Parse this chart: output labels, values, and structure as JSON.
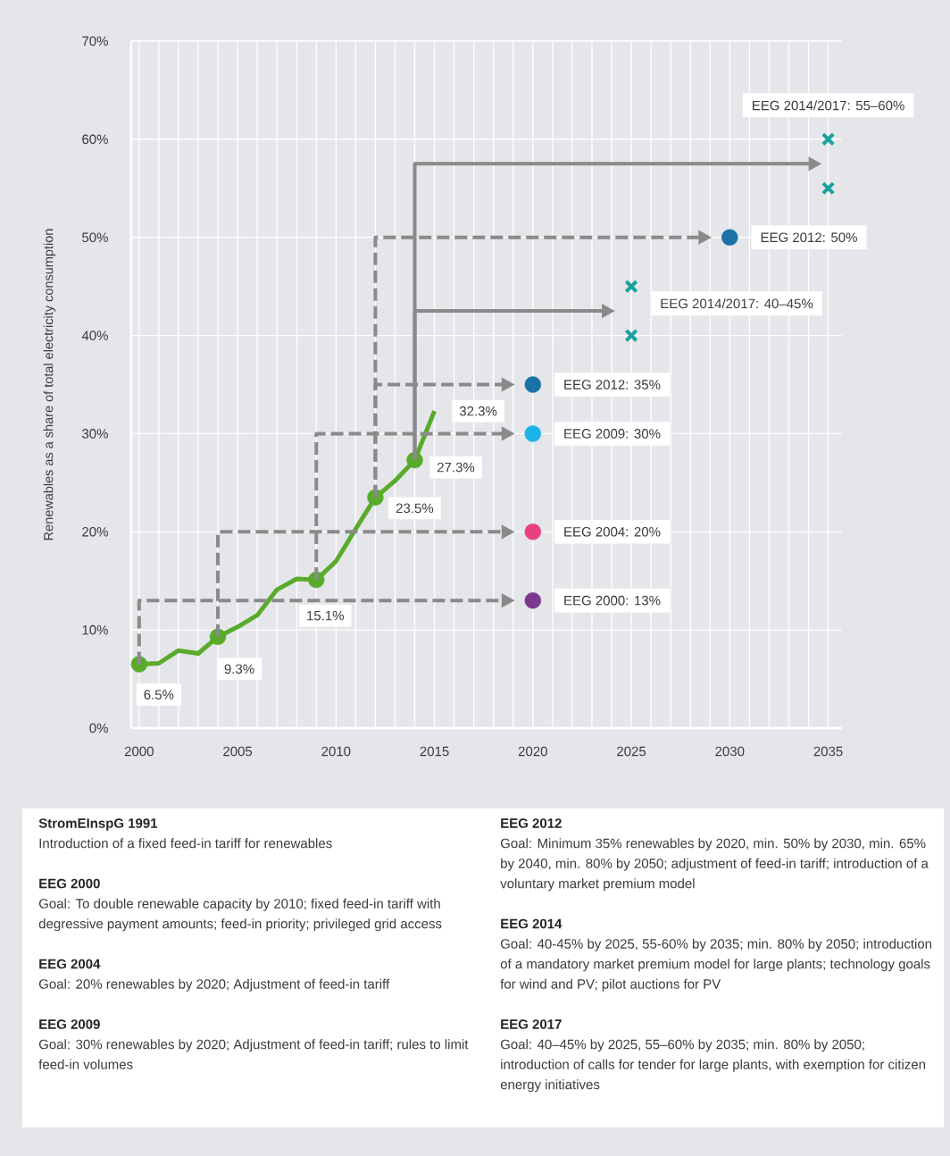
{
  "chart_data": {
    "type": "line",
    "ylabel": "Renewables as a share of total electricity consumption",
    "xlim": [
      1999.6,
      2035.7
    ],
    "ylim": [
      0,
      70
    ],
    "xticks": [
      2000,
      2005,
      2010,
      2015,
      2020,
      2025,
      2030,
      2035
    ],
    "yticks": [
      {
        "value": 0,
        "label": "0%"
      },
      {
        "value": 10,
        "label": "10%"
      },
      {
        "value": 20,
        "label": "20%"
      },
      {
        "value": 30,
        "label": "30%"
      },
      {
        "value": 40,
        "label": "40%"
      },
      {
        "value": 50,
        "label": "50%"
      },
      {
        "value": 60,
        "label": "60%"
      },
      {
        "value": 70,
        "label": "70%"
      }
    ],
    "grid": true,
    "x": [
      2000,
      2001,
      2002,
      2003,
      2004,
      2005,
      2006,
      2007,
      2008,
      2009,
      2010,
      2011,
      2012,
      2013,
      2014,
      2015
    ],
    "series": [
      {
        "color": "#5aab2c",
        "values": [
          6.5,
          6.6,
          7.9,
          7.6,
          9.3,
          10.3,
          11.5,
          14.1,
          15.2,
          15.1,
          17.0,
          20.3,
          23.5,
          25.2,
          27.3,
          32.3
        ],
        "value_labels": [
          "6.5%",
          null,
          null,
          null,
          "9.3%",
          null,
          null,
          null,
          null,
          "15.1%",
          null,
          null,
          "23.5%",
          null,
          "27.3%",
          "32.3%"
        ]
      },
      {
        "type": "scatter",
        "marker": "circle",
        "color": "#5aab2c",
        "x": [
          2000,
          2004,
          2009,
          2012,
          2014
        ],
        "values": [
          6.5,
          9.3,
          15.1,
          23.5,
          27.3
        ]
      },
      {
        "type": "scatter",
        "marker": "circle",
        "x": [
          2020,
          2020,
          2020,
          2020,
          2030
        ],
        "values": [
          13,
          20,
          30,
          35,
          50
        ],
        "colors": [
          "#7b3a8e",
          "#e9407f",
          "#1ab4e6",
          "#1a72a6",
          "#1a72a6"
        ]
      },
      {
        "type": "scatter",
        "marker": "cross",
        "color": "#1aa2a0",
        "x": [
          2025,
          2025,
          2035,
          2035
        ],
        "values": [
          40,
          45,
          55,
          60
        ]
      }
    ],
    "annotations": [
      {
        "text": "EEG 2000: 13%",
        "x": 2020,
        "y": 13
      },
      {
        "text": "EEG 2004: 20%",
        "x": 2020,
        "y": 20
      },
      {
        "text": "EEG 2009: 30%",
        "x": 2020,
        "y": 30
      },
      {
        "text": "EEG 2012: 35%",
        "x": 2020,
        "y": 35
      },
      {
        "text": "EEG 2012: 50%",
        "x": 2030,
        "y": 50
      },
      {
        "text": "EEG 2014/2017: 40–45%",
        "x": 2025,
        "y": 45
      },
      {
        "text": "EEG 2014/2017: 55–60%",
        "x": 2035,
        "y": 60
      },
      "StromEInspG 1991",
      "Introduction of a fixed feed-in tariff for renewables",
      "EEG 2000",
      "Goal: To double renewable capacity by 2010; fixed feed-in tariff with degressive payment amounts; feed-in priority; privileged grid access",
      "EEG 2004",
      "Goal: 20% renewables by 2020; Adjustment of feed-in tariff",
      "EEG 2009",
      "Goal: 30% renewables by 2020; Adjustment of feed-in tariff; rules to limit feed-in volumes",
      "EEG 2012",
      "Goal: Minimum 35% renewables by 2020, min. 50% by 2030, min. 65% by 2040, min. 80% by 2050; adjustment of feed-in tariff; introduction of a voluntary market premium model",
      "EEG 2014",
      "Goal: 40-45% by 2025, 55-60% by 2035; min. 80% by 2050; introduction of a mandatory market premium model for large plants; technology goals for wind and PV; pilot auctions for PV",
      "EEG 2017",
      "Goal: 40–45% by 2025, 55–60% by 2035; min. 80% by 2050; introduction of calls for tender for large plants, with exemption for citizen energy initiatives"
    ]
  }
}
